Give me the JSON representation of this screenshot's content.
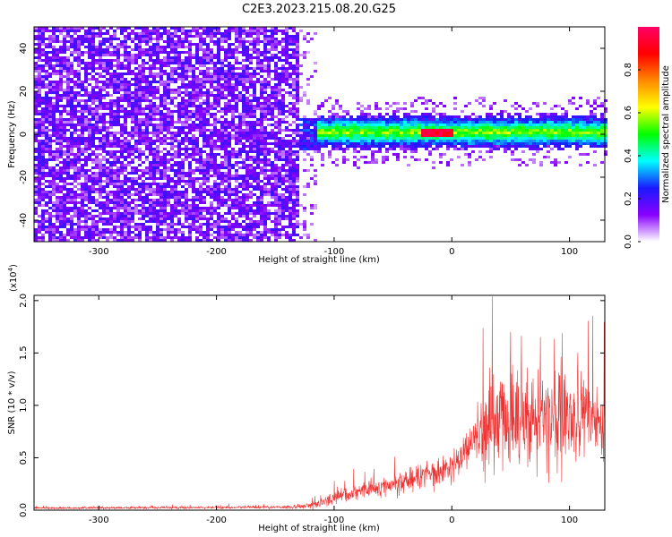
{
  "title": "C2E3.2023.215.08.20.G25",
  "chart_data": [
    {
      "type": "heatmap",
      "title": "C2E3.2023.215.08.20.G25",
      "xlabel": "Height of straight line (km)",
      "ylabel": "Frequency (Hz)",
      "xlim": [
        -355,
        130
      ],
      "ylim": [
        -50,
        50
      ],
      "x_ticks": [
        -300,
        -200,
        -100,
        0,
        100
      ],
      "x_tick_labels": [
        "-300",
        "-200",
        "-100",
        "0",
        "100"
      ],
      "y_ticks": [
        -40,
        -20,
        0,
        20,
        40
      ],
      "y_tick_labels": [
        "-40",
        "-20",
        "0",
        "20",
        "40"
      ],
      "colorbar": {
        "label": "Normalized spectral amplitude",
        "range": [
          0,
          1
        ],
        "ticks": [
          0.0,
          0.2,
          0.4,
          0.6,
          0.8
        ],
        "tick_labels": [
          "0.0",
          "0.2",
          "0.4",
          "0.6",
          "0.8"
        ],
        "colors": [
          "#ffffff",
          "#8800ff",
          "#1a1aff",
          "#00ffff",
          "#00ff00",
          "#ffff00",
          "#ff8800",
          "#ff0000",
          "#ff0066"
        ]
      },
      "regions": [
        {
          "x_range": [
            -355,
            -130
          ],
          "frequency_range": [
            -50,
            50
          ],
          "amplitude": "low (0.05-0.2)",
          "pattern": "broadband noise"
        },
        {
          "x_range": [
            -130,
            130
          ],
          "frequency_center": 0,
          "frequency_halfwidth": 8,
          "amplitude": "0.2-0.6",
          "pattern": "narrow band near 0 Hz"
        },
        {
          "x_range": [
            -25,
            0
          ],
          "frequency_center": 1,
          "amplitude": "peak 0.9-1.0",
          "pattern": "strong narrow line"
        }
      ]
    },
    {
      "type": "line",
      "xlabel": "Height of straight line (km)",
      "ylabel": "SNR (10 * v/v)",
      "y_multiplier": "(x10",
      "y_multiplier_exp": "4",
      "y_multiplier_close": ")",
      "xlim": [
        -355,
        130
      ],
      "ylim": [
        0,
        2.05
      ],
      "x_ticks": [
        -300,
        -200,
        -100,
        0,
        100
      ],
      "x_tick_labels": [
        "-300",
        "-200",
        "-100",
        "0",
        "100"
      ],
      "y_ticks": [
        0.0,
        0.5,
        1.0,
        1.5,
        2.0
      ],
      "y_tick_labels": [
        "0.0",
        "0.5",
        "1.0",
        "1.5",
        "2.0"
      ],
      "color": "#ee3333",
      "envelope": {
        "x": [
          -355,
          -200,
          -130,
          -115,
          -100,
          -80,
          -60,
          -40,
          -20,
          -10,
          0,
          10,
          20,
          27,
          40,
          60,
          80,
          100,
          120,
          130
        ],
        "mean": [
          0.02,
          0.025,
          0.03,
          0.05,
          0.12,
          0.18,
          0.22,
          0.28,
          0.35,
          0.38,
          0.42,
          0.55,
          0.68,
          0.82,
          0.85,
          0.88,
          0.9,
          0.88,
          0.85,
          0.85
        ],
        "spread": [
          0.01,
          0.015,
          0.02,
          0.05,
          0.08,
          0.1,
          0.12,
          0.14,
          0.16,
          0.18,
          0.16,
          0.2,
          0.25,
          0.55,
          0.6,
          0.62,
          0.62,
          0.55,
          0.45,
          0.45
        ]
      }
    }
  ]
}
